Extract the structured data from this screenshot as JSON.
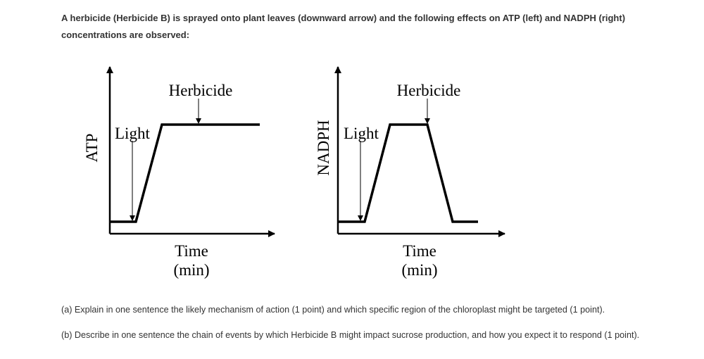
{
  "intro": "A herbicide (Herbicide B) is sprayed onto plant leaves (downward arrow) and the following effects on ATP (left) and NADPH (right) concentrations are observed:",
  "diagrams": [
    {
      "ylabel": "ATP",
      "xlabel_line1": "Time",
      "xlabel_line2": "(min)",
      "light_label": "Light",
      "herbicide_label": "Herbicide",
      "response": "rises after light, stays high after herbicide"
    },
    {
      "ylabel": "NADPH",
      "xlabel_line1": "Time",
      "xlabel_line2": "(min)",
      "light_label": "Light",
      "herbicide_label": "Herbicide",
      "response": "rises after light, falls to baseline after herbicide"
    }
  ],
  "questions": {
    "a": "(a) Explain in one sentence the likely mechanism of action (1 point) and which specific region of the chloroplast might be targeted (1 point).",
    "b": "(b) Describe in one sentence the chain of events by which Herbicide B might impact sucrose production, and how you expect it to respond (1 point)."
  }
}
